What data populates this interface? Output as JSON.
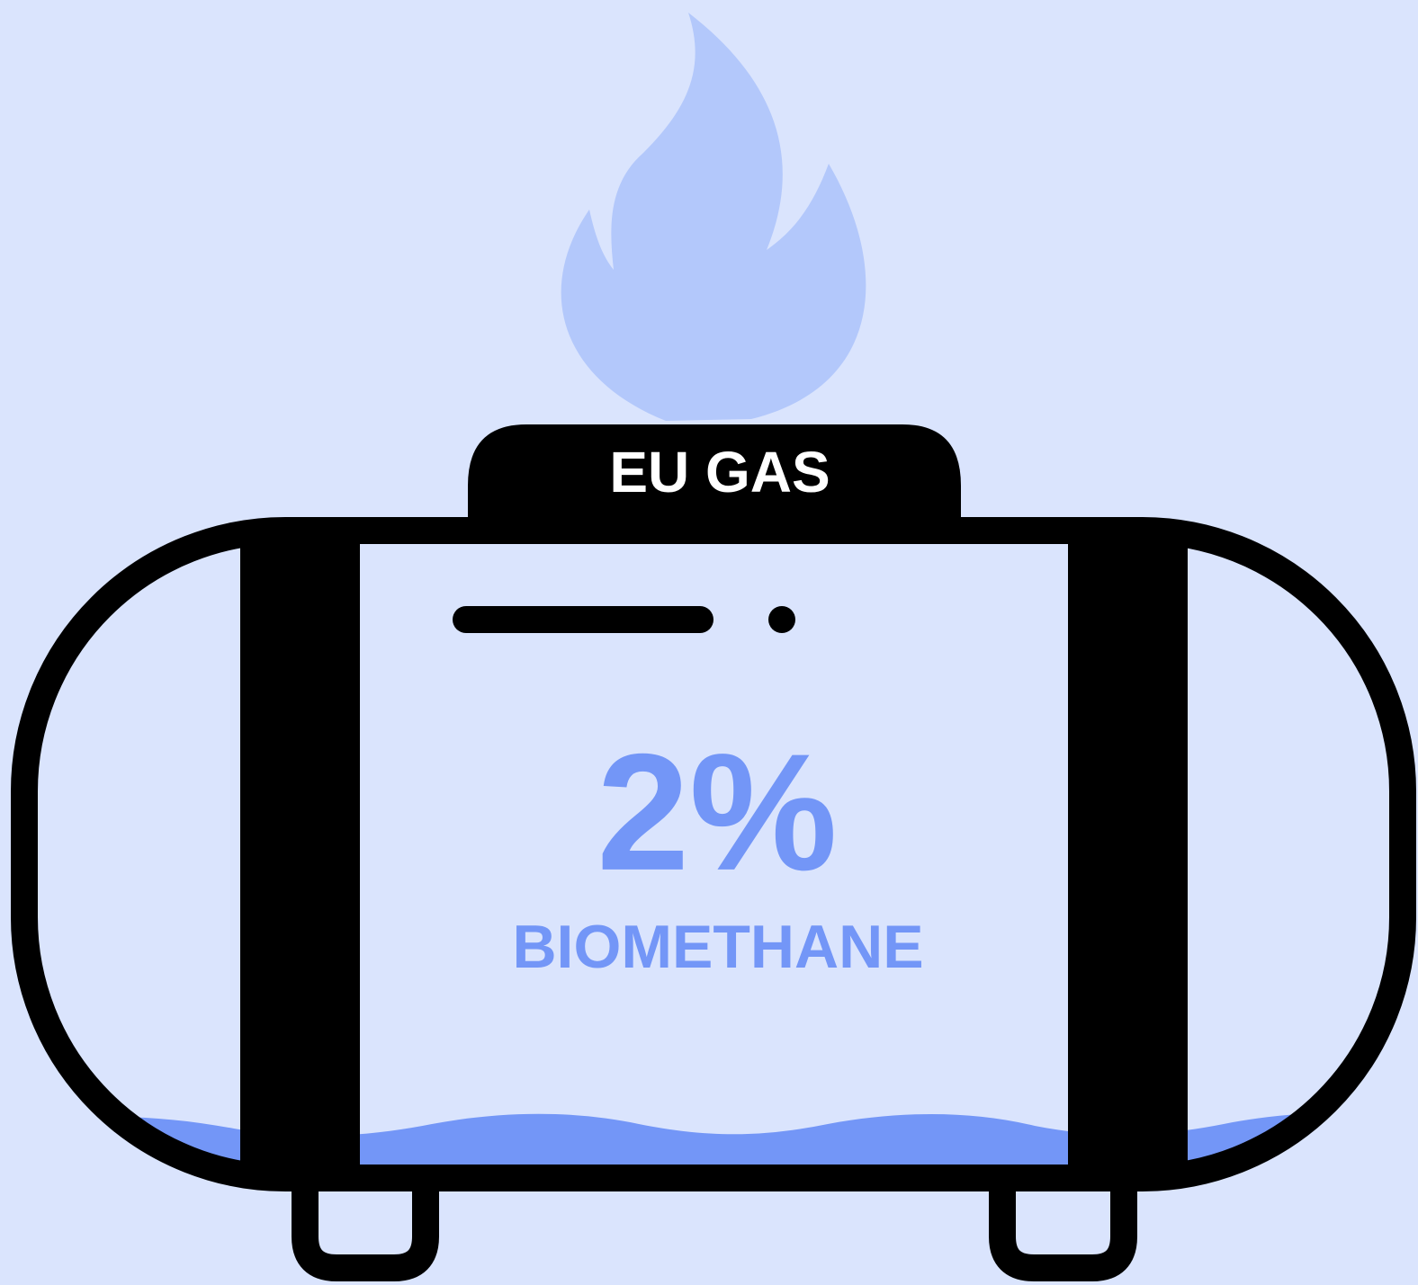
{
  "tank": {
    "label": "EU GAS",
    "share": "2%",
    "caption": "BIOMETHANE"
  }
}
